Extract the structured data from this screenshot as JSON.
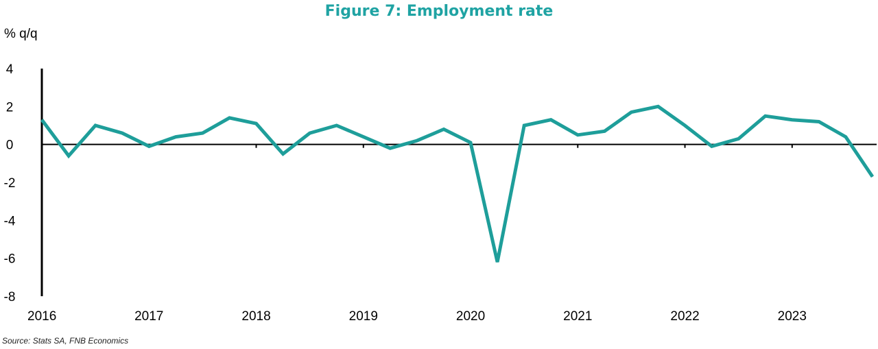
{
  "chart_data": {
    "type": "line",
    "title": "Figure 7: Employment rate",
    "ylabel": "% q/q",
    "xlabel": "",
    "source": "Source: Stats SA, FNB Economics",
    "ylim": [
      -8,
      4
    ],
    "yticks": [
      "4",
      "2",
      "0",
      "-2",
      "-4",
      "-6",
      "-8"
    ],
    "xticks": [
      "2016",
      "2017",
      "2018",
      "2019",
      "2020",
      "2021",
      "2022",
      "2023"
    ],
    "series": [
      {
        "name": "Employment rate",
        "color": "#1e9e9a",
        "x": [
          2016.0,
          2016.25,
          2016.5,
          2016.75,
          2017.0,
          2017.25,
          2017.5,
          2017.75,
          2018.0,
          2018.25,
          2018.5,
          2018.75,
          2019.0,
          2019.25,
          2019.5,
          2019.75,
          2020.0,
          2020.25,
          2020.5,
          2020.75,
          2021.0,
          2021.25,
          2021.5,
          2021.75,
          2022.0,
          2022.25,
          2022.5,
          2022.75,
          2023.0,
          2023.25,
          2023.5,
          2023.75
        ],
        "values": [
          1.3,
          -0.6,
          1.0,
          0.6,
          -0.1,
          0.4,
          0.6,
          1.4,
          1.1,
          -0.5,
          0.6,
          1.0,
          0.4,
          -0.2,
          0.2,
          0.8,
          0.1,
          -6.2,
          1.0,
          1.3,
          0.5,
          0.7,
          1.7,
          2.0,
          1.0,
          -0.1,
          0.3,
          1.5,
          1.3,
          1.2,
          0.4,
          -1.7
        ]
      }
    ]
  }
}
